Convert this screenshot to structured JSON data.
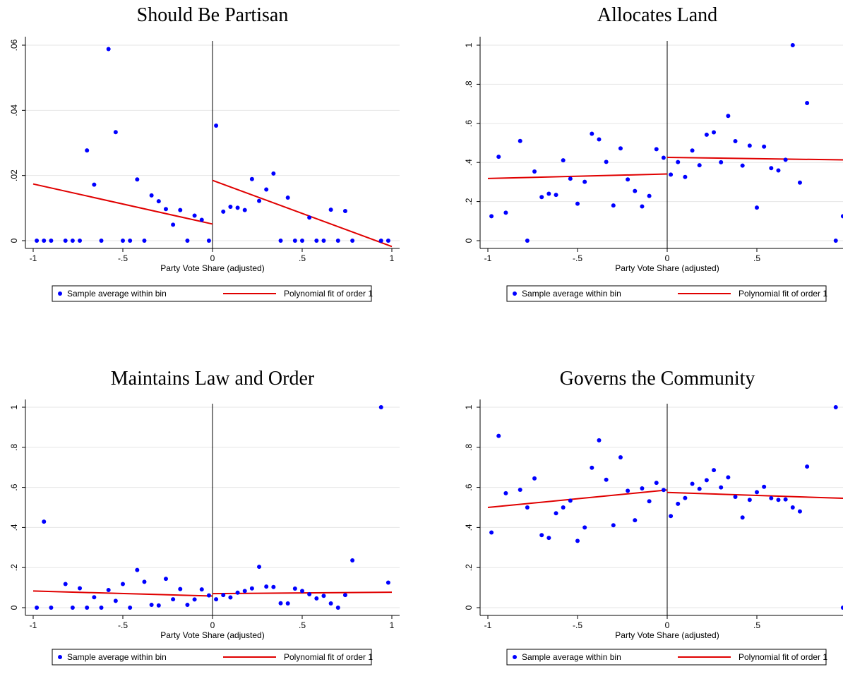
{
  "colors": {
    "points": "#0000ff",
    "fit": "#e00000",
    "grid": "#e6e6e6",
    "axis": "#000000"
  },
  "chart_data": [
    {
      "type": "scatter",
      "title": "Should Be Partisan",
      "xlabel": "Party Vote Share (adjusted)",
      "ylabel": "",
      "xlim": [
        -1,
        1
      ],
      "ylim": [
        0,
        0.06
      ],
      "xticks": [
        -1,
        -0.5,
        0,
        0.5,
        1
      ],
      "xtick_labels": [
        "-1",
        "-.5",
        "0",
        ".5",
        "1"
      ],
      "yticks": [
        0,
        0.02,
        0.04,
        0.06
      ],
      "ytick_labels": [
        "0",
        ".02",
        ".04",
        ".06"
      ],
      "grid": true,
      "cutoff": 0,
      "legend": {
        "position": "bottom",
        "items": [
          "Sample average within bin",
          "Polynomial fit of order 1"
        ]
      },
      "series": [
        {
          "name": "Sample average within bin",
          "points": [
            [
              -0.98,
              0
            ],
            [
              -0.94,
              0
            ],
            [
              -0.9,
              0
            ],
            [
              -0.82,
              0
            ],
            [
              -0.78,
              0
            ],
            [
              -0.74,
              0
            ],
            [
              -0.7,
              0.0277
            ],
            [
              -0.66,
              0.0172
            ],
            [
              -0.62,
              0
            ],
            [
              -0.58,
              0.0588
            ],
            [
              -0.54,
              0.0333
            ],
            [
              -0.5,
              0
            ],
            [
              -0.46,
              0
            ],
            [
              -0.42,
              0.0188
            ],
            [
              -0.38,
              0
            ],
            [
              -0.34,
              0.0139
            ],
            [
              -0.3,
              0.0121
            ],
            [
              -0.26,
              0.0097
            ],
            [
              -0.22,
              0.0049
            ],
            [
              -0.18,
              0.0094
            ],
            [
              -0.14,
              0
            ],
            [
              -0.1,
              0.0077
            ],
            [
              -0.06,
              0.0064
            ],
            [
              -0.02,
              0
            ],
            [
              0.02,
              0.0353
            ],
            [
              0.06,
              0.0089
            ],
            [
              0.1,
              0.0104
            ],
            [
              0.14,
              0.0101
            ],
            [
              0.18,
              0.0094
            ],
            [
              0.22,
              0.0189
            ],
            [
              0.26,
              0.0122
            ],
            [
              0.3,
              0.0157
            ],
            [
              0.34,
              0.0206
            ],
            [
              0.38,
              0
            ],
            [
              0.42,
              0.0132
            ],
            [
              0.46,
              0
            ],
            [
              0.5,
              0
            ],
            [
              0.54,
              0.0071
            ],
            [
              0.58,
              0
            ],
            [
              0.62,
              0
            ],
            [
              0.66,
              0.0095
            ],
            [
              0.7,
              0
            ],
            [
              0.74,
              0.0091
            ],
            [
              0.78,
              0
            ],
            [
              0.94,
              0
            ],
            [
              0.98,
              0
            ]
          ]
        },
        {
          "name": "Polynomial fit of order 1",
          "segments": [
            [
              [
                -1,
                0.0174
              ],
              [
                0,
                0.0051
              ]
            ],
            [
              [
                0,
                0.0185
              ],
              [
                1,
                -0.0018
              ]
            ]
          ]
        }
      ]
    },
    {
      "type": "scatter",
      "title": "Allocates Land",
      "xlabel": "Party Vote Share (adjusted)",
      "ylabel": "",
      "xlim": [
        -1,
        1
      ],
      "ylim": [
        0,
        1
      ],
      "xticks": [
        -1,
        -0.5,
        0,
        0.5
      ],
      "xtick_labels": [
        "-1",
        "-.5",
        "0",
        ".5"
      ],
      "yticks": [
        0,
        0.2,
        0.4,
        0.6,
        0.8,
        1
      ],
      "ytick_labels": [
        "0",
        ".2",
        ".4",
        ".6",
        ".8",
        "1"
      ],
      "grid": true,
      "cutoff": 0,
      "legend": {
        "position": "bottom",
        "items": [
          "Sample average within bin",
          "Polynomial fit of order 1"
        ]
      },
      "series": [
        {
          "name": "Sample average within bin",
          "points": [
            [
              -0.98,
              0.125
            ],
            [
              -0.94,
              0.429
            ],
            [
              -0.9,
              0.143
            ],
            [
              -0.82,
              0.51
            ],
            [
              -0.78,
              0
            ],
            [
              -0.74,
              0.354
            ],
            [
              -0.7,
              0.223
            ],
            [
              -0.66,
              0.24
            ],
            [
              -0.62,
              0.234
            ],
            [
              -0.58,
              0.411
            ],
            [
              -0.54,
              0.317
            ],
            [
              -0.5,
              0.189
            ],
            [
              -0.46,
              0.301
            ],
            [
              -0.42,
              0.547
            ],
            [
              -0.38,
              0.518
            ],
            [
              -0.34,
              0.403
            ],
            [
              -0.3,
              0.18
            ],
            [
              -0.26,
              0.472
            ],
            [
              -0.22,
              0.313
            ],
            [
              -0.18,
              0.254
            ],
            [
              -0.14,
              0.175
            ],
            [
              -0.1,
              0.229
            ],
            [
              -0.06,
              0.468
            ],
            [
              -0.02,
              0.424
            ],
            [
              0.02,
              0.338
            ],
            [
              0.06,
              0.402
            ],
            [
              0.1,
              0.326
            ],
            [
              0.14,
              0.461
            ],
            [
              0.18,
              0.386
            ],
            [
              0.22,
              0.542
            ],
            [
              0.26,
              0.554
            ],
            [
              0.3,
              0.401
            ],
            [
              0.34,
              0.638
            ],
            [
              0.38,
              0.509
            ],
            [
              0.42,
              0.384
            ],
            [
              0.46,
              0.486
            ],
            [
              0.5,
              0.169
            ],
            [
              0.54,
              0.481
            ],
            [
              0.58,
              0.371
            ],
            [
              0.62,
              0.359
            ],
            [
              0.66,
              0.414
            ],
            [
              0.7,
              1
            ],
            [
              0.74,
              0.297
            ],
            [
              0.78,
              0.704
            ],
            [
              0.94,
              0
            ],
            [
              0.98,
              0.125
            ]
          ]
        },
        {
          "name": "Polynomial fit of order 1",
          "segments": [
            [
              [
                -1,
                0.318
              ],
              [
                0,
                0.341
              ]
            ],
            [
              [
                0,
                0.426
              ],
              [
                1,
                0.413
              ]
            ]
          ]
        }
      ]
    },
    {
      "type": "scatter",
      "title": "Maintains Law and Order",
      "xlabel": "Party Vote Share (adjusted)",
      "ylabel": "",
      "xlim": [
        -1,
        1
      ],
      "ylim": [
        0,
        1
      ],
      "xticks": [
        -1,
        -0.5,
        0,
        0.5,
        1
      ],
      "xtick_labels": [
        "-1",
        "-.5",
        "0",
        ".5",
        "1"
      ],
      "yticks": [
        0,
        0.2,
        0.4,
        0.6,
        0.8,
        1
      ],
      "ytick_labels": [
        "0",
        ".2",
        ".4",
        ".6",
        ".8",
        "1"
      ],
      "grid": true,
      "cutoff": 0,
      "legend": {
        "position": "bottom",
        "items": [
          "Sample average within bin",
          "Polynomial fit of order 1"
        ]
      },
      "series": [
        {
          "name": "Sample average within bin",
          "points": [
            [
              -0.98,
              0
            ],
            [
              -0.94,
              0.429
            ],
            [
              -0.9,
              0
            ],
            [
              -0.82,
              0.118
            ],
            [
              -0.78,
              0
            ],
            [
              -0.74,
              0.097
            ],
            [
              -0.7,
              0
            ],
            [
              -0.66,
              0.052
            ],
            [
              -0.62,
              0
            ],
            [
              -0.58,
              0.088
            ],
            [
              -0.54,
              0.034
            ],
            [
              -0.5,
              0.118
            ],
            [
              -0.46,
              0
            ],
            [
              -0.42,
              0.188
            ],
            [
              -0.38,
              0.129
            ],
            [
              -0.34,
              0.014
            ],
            [
              -0.3,
              0.011
            ],
            [
              -0.26,
              0.144
            ],
            [
              -0.22,
              0.042
            ],
            [
              -0.18,
              0.093
            ],
            [
              -0.14,
              0.014
            ],
            [
              -0.1,
              0.041
            ],
            [
              -0.06,
              0.091
            ],
            [
              -0.02,
              0.061
            ],
            [
              0.02,
              0.042
            ],
            [
              0.06,
              0.063
            ],
            [
              0.1,
              0.051
            ],
            [
              0.14,
              0.075
            ],
            [
              0.18,
              0.083
            ],
            [
              0.22,
              0.096
            ],
            [
              0.26,
              0.204
            ],
            [
              0.3,
              0.105
            ],
            [
              0.34,
              0.103
            ],
            [
              0.38,
              0.022
            ],
            [
              0.42,
              0.021
            ],
            [
              0.46,
              0.095
            ],
            [
              0.5,
              0.083
            ],
            [
              0.54,
              0.067
            ],
            [
              0.58,
              0.046
            ],
            [
              0.62,
              0.059
            ],
            [
              0.66,
              0.021
            ],
            [
              0.7,
              0
            ],
            [
              0.74,
              0.063
            ],
            [
              0.78,
              0.236
            ],
            [
              0.94,
              1
            ],
            [
              0.98,
              0.125
            ]
          ]
        },
        {
          "name": "Polynomial fit of order 1",
          "segments": [
            [
              [
                -1,
                0.083
              ],
              [
                0,
                0.058
              ]
            ],
            [
              [
                0,
                0.07
              ],
              [
                1,
                0.077
              ]
            ]
          ]
        }
      ]
    },
    {
      "type": "scatter",
      "title": "Governs the Community",
      "xlabel": "Party Vote Share (adjusted)",
      "ylabel": "",
      "xlim": [
        -1,
        1
      ],
      "ylim": [
        0,
        1
      ],
      "xticks": [
        -1,
        -0.5,
        0,
        0.5
      ],
      "xtick_labels": [
        "-1",
        "-.5",
        "0",
        ".5"
      ],
      "yticks": [
        0,
        0.2,
        0.4,
        0.6,
        0.8,
        1
      ],
      "ytick_labels": [
        "0",
        ".2",
        ".4",
        ".6",
        ".8",
        "1"
      ],
      "grid": true,
      "cutoff": 0,
      "legend": {
        "position": "bottom",
        "items": [
          "Sample average within bin",
          "Polynomial fit of order 1"
        ]
      },
      "series": [
        {
          "name": "Sample average within bin",
          "points": [
            [
              -0.98,
              0.375
            ],
            [
              -0.94,
              0.857
            ],
            [
              -0.9,
              0.571
            ],
            [
              -0.82,
              0.588
            ],
            [
              -0.78,
              0.5
            ],
            [
              -0.74,
              0.645
            ],
            [
              -0.7,
              0.362
            ],
            [
              -0.66,
              0.348
            ],
            [
              -0.62,
              0.471
            ],
            [
              -0.58,
              0.5
            ],
            [
              -0.54,
              0.534
            ],
            [
              -0.5,
              0.333
            ],
            [
              -0.46,
              0.4
            ],
            [
              -0.42,
              0.698
            ],
            [
              -0.38,
              0.835
            ],
            [
              -0.34,
              0.638
            ],
            [
              -0.3,
              0.411
            ],
            [
              -0.26,
              0.75
            ],
            [
              -0.22,
              0.583
            ],
            [
              -0.18,
              0.436
            ],
            [
              -0.14,
              0.595
            ],
            [
              -0.1,
              0.531
            ],
            [
              -0.06,
              0.623
            ],
            [
              -0.02,
              0.587
            ],
            [
              0.02,
              0.457
            ],
            [
              0.06,
              0.518
            ],
            [
              0.1,
              0.547
            ],
            [
              0.14,
              0.618
            ],
            [
              0.18,
              0.593
            ],
            [
              0.22,
              0.636
            ],
            [
              0.26,
              0.686
            ],
            [
              0.3,
              0.6
            ],
            [
              0.34,
              0.65
            ],
            [
              0.38,
              0.553
            ],
            [
              0.42,
              0.45
            ],
            [
              0.46,
              0.538
            ],
            [
              0.5,
              0.576
            ],
            [
              0.54,
              0.603
            ],
            [
              0.58,
              0.546
            ],
            [
              0.62,
              0.538
            ],
            [
              0.66,
              0.54
            ],
            [
              0.7,
              0.5
            ],
            [
              0.74,
              0.48
            ],
            [
              0.78,
              0.704
            ],
            [
              0.94,
              1
            ],
            [
              0.98,
              0
            ]
          ]
        },
        {
          "name": "Polynomial fit of order 1",
          "segments": [
            [
              [
                -1,
                0.5
              ],
              [
                0,
                0.587
              ]
            ],
            [
              [
                0,
                0.575
              ],
              [
                1,
                0.545
              ]
            ]
          ]
        }
      ]
    }
  ]
}
